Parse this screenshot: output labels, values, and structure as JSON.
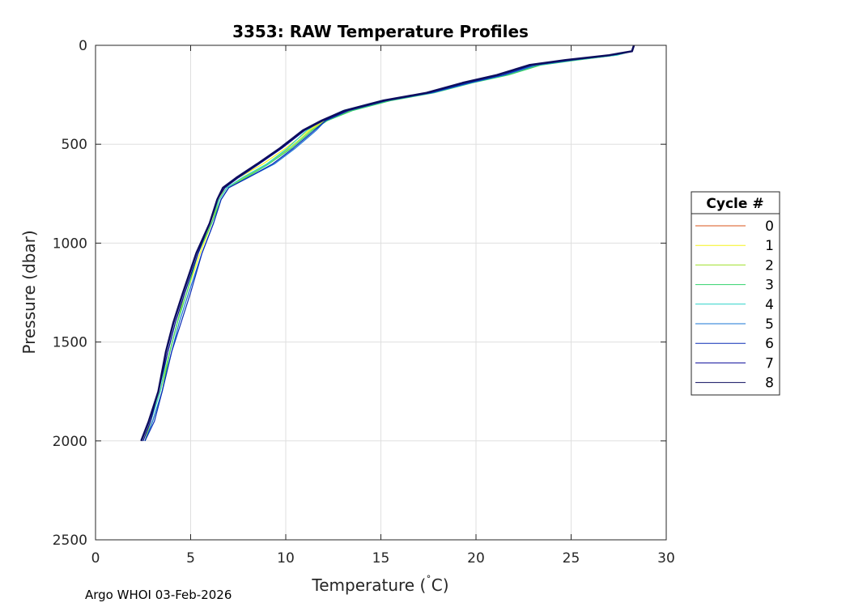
{
  "chart_data": {
    "type": "line",
    "title": "3353: RAW Temperature Profiles",
    "xlabel": "Temperature (",
    "xlabel_degree": "˚",
    "xlabel_unit": "C)",
    "ylabel": "Pressure (dbar)",
    "xlim": [
      0,
      30
    ],
    "ylim": [
      0,
      2500
    ],
    "y_reversed": true,
    "grid": true,
    "xticks": [
      "0",
      "5",
      "10",
      "15",
      "20",
      "25",
      "30"
    ],
    "yticks": [
      "0",
      "500",
      "1000",
      "1500",
      "2000",
      "2500"
    ],
    "legend_title": "Cycle #",
    "legend_position": "right",
    "series": [
      {
        "name": "0",
        "color": "#d95319",
        "x": [],
        "y": []
      },
      {
        "name": "1",
        "color": "#f5f31b",
        "x": [
          28.3,
          28.2,
          27.2,
          25.0,
          23.2,
          21.5,
          19.6,
          17.6,
          15.3,
          13.3,
          12.0,
          11.2,
          10.0,
          8.8,
          7.5,
          6.8,
          6.5,
          6.1,
          5.5,
          4.8,
          4.3,
          3.9,
          3.4,
          2.9,
          2.6
        ],
        "y": [
          0,
          30,
          50,
          75,
          100,
          150,
          190,
          240,
          280,
          330,
          380,
          430,
          520,
          600,
          670,
          720,
          780,
          900,
          1050,
          1250,
          1400,
          1550,
          1750,
          1900,
          2000
        ]
      },
      {
        "name": "2",
        "color": "#a0e02b",
        "x": [
          28.3,
          28.2,
          27.3,
          25.2,
          23.3,
          21.6,
          19.7,
          17.7,
          15.4,
          13.4,
          12.1,
          11.3,
          10.2,
          9.0,
          7.8,
          6.9,
          6.5,
          6.1,
          5.4,
          4.7,
          4.3,
          3.9,
          3.4,
          2.9,
          2.6
        ],
        "y": [
          0,
          30,
          50,
          75,
          100,
          150,
          190,
          240,
          280,
          330,
          380,
          430,
          520,
          600,
          670,
          720,
          780,
          900,
          1050,
          1250,
          1400,
          1550,
          1750,
          1900,
          2000
        ]
      },
      {
        "name": "3",
        "color": "#31d36c",
        "x": [
          28.3,
          28.2,
          27.4,
          25.3,
          23.4,
          21.7,
          19.8,
          17.8,
          15.5,
          13.5,
          12.2,
          11.4,
          10.3,
          9.1,
          7.9,
          7.0,
          6.6,
          6.1,
          5.4,
          4.8,
          4.3,
          3.9,
          3.5,
          3.0,
          2.6
        ],
        "y": [
          0,
          30,
          50,
          75,
          100,
          150,
          190,
          240,
          280,
          330,
          380,
          430,
          520,
          600,
          670,
          720,
          780,
          900,
          1050,
          1250,
          1400,
          1550,
          1750,
          1900,
          2000
        ]
      },
      {
        "name": "4",
        "color": "#2ad3c8",
        "x": [
          28.3,
          28.2,
          27.4,
          25.1,
          23.1,
          21.4,
          19.5,
          17.5,
          15.0,
          13.0,
          11.9,
          11.1,
          10.1,
          9.0,
          7.7,
          6.9,
          6.5,
          6.0,
          5.4,
          4.7,
          4.2,
          3.8,
          3.4,
          2.9,
          2.5
        ],
        "y": [
          0,
          30,
          50,
          75,
          100,
          150,
          190,
          240,
          280,
          330,
          380,
          430,
          520,
          600,
          670,
          720,
          780,
          900,
          1050,
          1250,
          1400,
          1550,
          1750,
          1900,
          2000
        ]
      },
      {
        "name": "5",
        "color": "#1a74d6",
        "x": [
          28.3,
          28.2,
          27.2,
          25.1,
          23.2,
          21.5,
          19.7,
          17.7,
          15.3,
          13.3,
          12.1,
          11.6,
          10.5,
          9.4,
          8.0,
          7.0,
          6.6,
          6.2,
          5.6,
          4.9,
          4.4,
          4.0,
          3.5,
          3.0,
          2.6
        ],
        "y": [
          0,
          30,
          50,
          75,
          100,
          150,
          190,
          240,
          280,
          330,
          380,
          430,
          520,
          600,
          670,
          720,
          780,
          900,
          1050,
          1250,
          1400,
          1550,
          1750,
          1900,
          2000
        ]
      },
      {
        "name": "6",
        "color": "#0a2bb5",
        "x": [
          28.3,
          28.2,
          27.1,
          25.0,
          23.0,
          21.4,
          19.6,
          17.6,
          15.3,
          13.3,
          12.1,
          11.5,
          10.4,
          9.3,
          8.0,
          7.0,
          6.6,
          6.2,
          5.6,
          5.0,
          4.5,
          4.0,
          3.5,
          3.1,
          2.6
        ],
        "y": [
          0,
          30,
          50,
          75,
          100,
          150,
          190,
          240,
          280,
          330,
          380,
          430,
          520,
          600,
          670,
          720,
          780,
          900,
          1050,
          1250,
          1400,
          1550,
          1750,
          1900,
          2000
        ]
      },
      {
        "name": "7",
        "color": "#0a0a9a",
        "x": [
          28.3,
          28.2,
          27.0,
          24.8,
          22.9,
          21.2,
          19.4,
          17.5,
          15.2,
          13.2,
          12.0,
          11.0,
          9.8,
          8.6,
          7.5,
          6.8,
          6.4,
          6.0,
          5.4,
          4.7,
          4.2,
          3.8,
          3.3,
          2.9,
          2.5
        ],
        "y": [
          0,
          30,
          50,
          75,
          100,
          150,
          190,
          240,
          280,
          330,
          380,
          430,
          520,
          600,
          670,
          720,
          780,
          900,
          1050,
          1250,
          1400,
          1550,
          1750,
          1900,
          2000
        ]
      },
      {
        "name": "8",
        "color": "#0d0d5e",
        "x": [
          28.3,
          28.2,
          27.0,
          24.7,
          22.8,
          21.1,
          19.3,
          17.4,
          15.1,
          13.1,
          11.9,
          10.9,
          9.7,
          8.5,
          7.4,
          6.7,
          6.4,
          6.0,
          5.3,
          4.6,
          4.1,
          3.7,
          3.3,
          2.8,
          2.4
        ],
        "y": [
          0,
          30,
          50,
          75,
          100,
          150,
          190,
          240,
          280,
          330,
          380,
          430,
          520,
          600,
          670,
          720,
          780,
          900,
          1050,
          1250,
          1400,
          1550,
          1750,
          1900,
          2000
        ]
      }
    ],
    "footer": "Argo WHOI 03-Feb-2026"
  }
}
